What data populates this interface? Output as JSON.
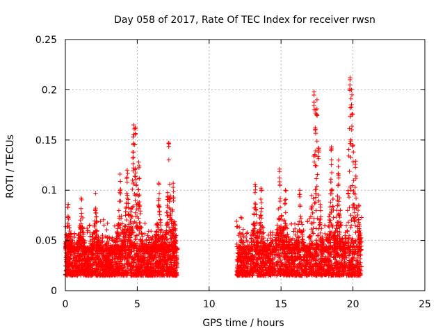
{
  "chart_data": {
    "type": "scatter",
    "title": "Day 058 of 2017, Rate Of TEC Index for receiver rwsn",
    "xlabel": "GPS time / hours",
    "ylabel": "ROTI / TECUs",
    "xlim": [
      0,
      25
    ],
    "ylim": [
      0,
      0.25
    ],
    "xticks": [
      "0",
      "5",
      "10",
      "15",
      "20",
      "25"
    ],
    "yticks": [
      "0",
      "0.05",
      "0.1",
      "0.15",
      "0.2",
      "0.25"
    ],
    "grid": true,
    "marker": "plus",
    "color": "#ff0000",
    "segments": [
      {
        "x_range": [
          0.0,
          7.8
        ],
        "base": [
          0.015,
          0.045
        ]
      },
      {
        "x_range": [
          11.9,
          20.6
        ],
        "base": [
          0.015,
          0.045
        ]
      }
    ],
    "peaks": [
      {
        "x": 0.2,
        "y": 0.086
      },
      {
        "x": 1.1,
        "y": 0.092
      },
      {
        "x": 2.1,
        "y": 0.097
      },
      {
        "x": 3.8,
        "y": 0.116
      },
      {
        "x": 4.3,
        "y": 0.12
      },
      {
        "x": 4.7,
        "y": 0.138
      },
      {
        "x": 4.75,
        "y": 0.165
      },
      {
        "x": 4.85,
        "y": 0.162
      },
      {
        "x": 5.1,
        "y": 0.128
      },
      {
        "x": 6.5,
        "y": 0.107
      },
      {
        "x": 7.2,
        "y": 0.147
      },
      {
        "x": 7.5,
        "y": 0.107
      },
      {
        "x": 13.2,
        "y": 0.106
      },
      {
        "x": 13.6,
        "y": 0.102
      },
      {
        "x": 14.9,
        "y": 0.121
      },
      {
        "x": 15.3,
        "y": 0.1
      },
      {
        "x": 16.3,
        "y": 0.1
      },
      {
        "x": 17.3,
        "y": 0.198
      },
      {
        "x": 17.4,
        "y": 0.18
      },
      {
        "x": 17.5,
        "y": 0.19
      },
      {
        "x": 17.6,
        "y": 0.142
      },
      {
        "x": 18.5,
        "y": 0.143
      },
      {
        "x": 19.0,
        "y": 0.13
      },
      {
        "x": 19.8,
        "y": 0.212
      },
      {
        "x": 19.9,
        "y": 0.2
      },
      {
        "x": 19.95,
        "y": 0.176
      },
      {
        "x": 20.0,
        "y": 0.145
      },
      {
        "x": 20.2,
        "y": 0.129
      },
      {
        "x": 20.4,
        "y": 0.085
      }
    ]
  }
}
